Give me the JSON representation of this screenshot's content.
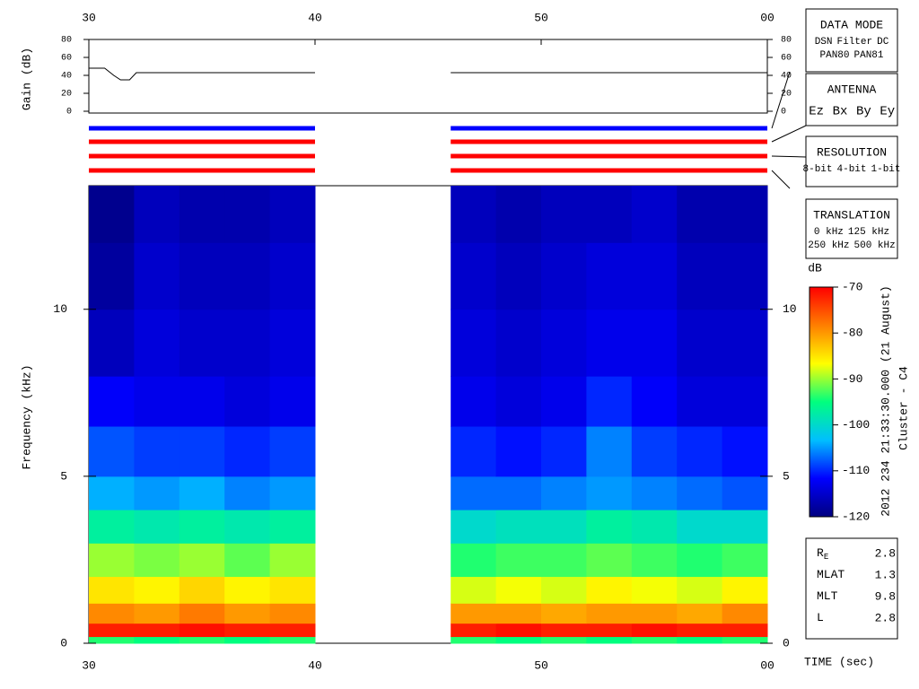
{
  "chart_data": {
    "type": "spectrogram",
    "xlabel": "TIME (sec)",
    "xlim": [
      30,
      60
    ],
    "xticks": [
      30,
      40,
      50,
      {
        "value": 60,
        "label": "00"
      }
    ],
    "gain": {
      "type": "line",
      "ylabel": "Gain (dB)",
      "ylim": [
        0,
        80
      ],
      "yticks": [
        0,
        20,
        40,
        60,
        80
      ],
      "color": "#000000",
      "x": [
        30,
        30.7,
        31.1,
        31.4,
        31.8,
        32.1,
        40,
        43,
        46,
        60
      ],
      "values": [
        48,
        48,
        40,
        35,
        35,
        43,
        43,
        null,
        43,
        43
      ]
    },
    "modes": {
      "type": "bars",
      "segments": [
        [
          30,
          40
        ],
        [
          46,
          60
        ]
      ],
      "colors": [
        "#0000ff",
        "#ff0000",
        "#ff0000",
        "#ff0000"
      ]
    },
    "spectrogram": {
      "type": "heatmap",
      "ylabel": "Frequency (kHz)",
      "ylim": [
        0,
        13.7
      ],
      "yticks": [
        0,
        5,
        10
      ],
      "x_bins": [
        30,
        32,
        34,
        36,
        38,
        40,
        46,
        48,
        50,
        52,
        54,
        56,
        58,
        60
      ],
      "y_bins": [
        0,
        0.2,
        0.6,
        1.2,
        2,
        3,
        4,
        5,
        6.5,
        8,
        10,
        12,
        13.7
      ],
      "values": [
        [
          -94,
          -95,
          -94,
          -95,
          -94,
          null,
          -94,
          -95,
          -94,
          -95,
          -94,
          -95,
          -94
        ],
        [
          -72,
          -72,
          -71,
          -72,
          -72,
          null,
          -72,
          -71,
          -72,
          -72,
          -71,
          -72,
          -72
        ],
        [
          -79,
          -80,
          -78,
          -80,
          -79,
          null,
          -80,
          -80,
          -81,
          -80,
          -80,
          -81,
          -79
        ],
        [
          -85,
          -86,
          -84,
          -86,
          -85,
          null,
          -88,
          -87,
          -88,
          -86,
          -87,
          -88,
          -86
        ],
        [
          -90,
          -91,
          -90,
          -92,
          -90,
          null,
          -94,
          -93,
          -93,
          -92,
          -93,
          -94,
          -93
        ],
        [
          -97,
          -98,
          -97,
          -98,
          -97,
          null,
          -100,
          -99,
          -99,
          -97,
          -98,
          -100,
          -100
        ],
        [
          -104,
          -105,
          -104,
          -106,
          -105,
          null,
          -107,
          -107,
          -106,
          -105,
          -106,
          -107,
          -108
        ],
        [
          -108,
          -109,
          -109,
          -110,
          -109,
          null,
          -110,
          -111,
          -110,
          -106,
          -109,
          -110,
          -111
        ],
        [
          -112,
          -113,
          -113,
          -114,
          -113,
          null,
          -113,
          -114,
          -113,
          -110,
          -112,
          -114,
          -114
        ],
        [
          -116,
          -114,
          -115,
          -115,
          -114,
          null,
          -114,
          -115,
          -114,
          -113,
          -113,
          -115,
          -115
        ],
        [
          -118,
          -115,
          -116,
          -116,
          -115,
          null,
          -115,
          -116,
          -115,
          -114,
          -114,
          -116,
          -116
        ],
        [
          -119,
          -116,
          -117,
          -117,
          -116,
          null,
          -116,
          -117,
          -116,
          -116,
          -115,
          -117,
          -117
        ]
      ],
      "clim": [
        -120,
        -70
      ],
      "colormap": [
        "#00007f",
        "#0000ff",
        "#00bfff",
        "#00ff7f",
        "#ffff00",
        "#ff7f00",
        "#ff0000"
      ]
    },
    "colorbar": {
      "label": "dB",
      "ticks": [
        -70,
        -80,
        -90,
        -100,
        -110,
        -120
      ]
    },
    "legends": [
      {
        "title": "DATA MODE",
        "rows": [
          [
            {
              "name": "DSN",
              "color": "#ff0000"
            },
            {
              "name": "Filter",
              "color": "#00c000"
            },
            {
              "name": "DC",
              "color": "#0000ff"
            }
          ],
          [
            {
              "name": "PAN80",
              "color": "#000000"
            },
            {
              "name": "PAN81",
              "color": "#00c8c8"
            }
          ]
        ]
      },
      {
        "title": "ANTENNA",
        "rows": [
          [
            {
              "name": "Ez",
              "color": "#ff0000"
            },
            {
              "name": "Bx",
              "color": "#00c000"
            },
            {
              "name": "By",
              "color": "#0000ff"
            },
            {
              "name": "Ey",
              "color": "#000000"
            }
          ]
        ]
      },
      {
        "title": "RESOLUTION",
        "rows": [
          [
            {
              "name": "8-bit",
              "color": "#ff0000"
            },
            {
              "name": "4-bit",
              "color": "#00c000"
            },
            {
              "name": "1-bit",
              "color": "#0000ff"
            }
          ]
        ]
      },
      {
        "title": "TRANSLATION",
        "rows": [
          [
            {
              "name": "0 kHz",
              "color": "#ff0000"
            },
            {
              "name": "125 kHz",
              "color": "#00c000"
            }
          ],
          [
            {
              "name": "250 kHz",
              "color": "#0000ff"
            },
            {
              "name": "500 kHz",
              "color": "#000000"
            }
          ]
        ]
      }
    ],
    "caption": [
      "2012 234 21:33:30.000 (21 August)",
      "Cluster - C4"
    ],
    "ephemeris": [
      {
        "label": "R",
        "sub": "E",
        "value": 2.8
      },
      {
        "label": "MLAT",
        "value": 1.3
      },
      {
        "label": "MLT",
        "value": 9.8
      },
      {
        "label": "L",
        "value": 2.8
      }
    ]
  }
}
